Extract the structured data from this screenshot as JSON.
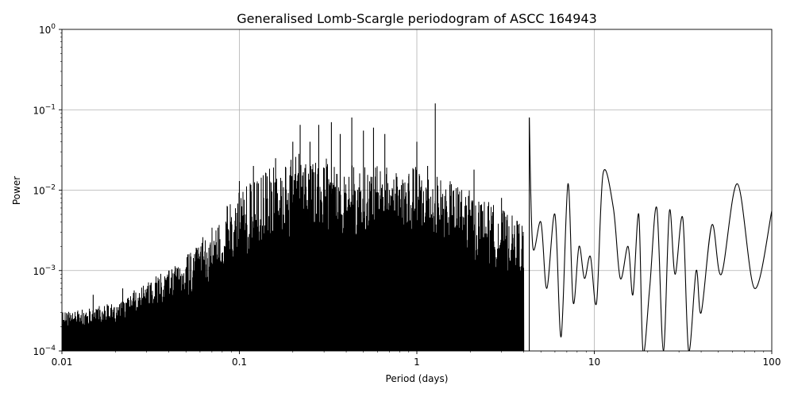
{
  "chart_data": {
    "type": "line",
    "title": "Generalised Lomb-Scargle periodogram of ASCC 164943",
    "xlabel": "Period (days)",
    "ylabel": "Power",
    "xscale": "log",
    "yscale": "log",
    "xlim": [
      0.01,
      100
    ],
    "ylim": [
      0.0001,
      1
    ],
    "grid": true,
    "line_color": "#000000",
    "x_ticks": [
      {
        "value": 0.01,
        "label": "0.01"
      },
      {
        "value": 0.1,
        "label": "0.1"
      },
      {
        "value": 1,
        "label": "1"
      },
      {
        "value": 10,
        "label": "10"
      },
      {
        "value": 100,
        "label": "100"
      }
    ],
    "y_ticks": [
      {
        "value": 0.0001,
        "base": "10",
        "exp": "−4"
      },
      {
        "value": 0.001,
        "base": "10",
        "exp": "−3"
      },
      {
        "value": 0.01,
        "base": "10",
        "exp": "−2"
      },
      {
        "value": 0.1,
        "base": "10",
        "exp": "−1"
      },
      {
        "value": 1,
        "base": "10",
        "exp": "0"
      }
    ],
    "envelope": [
      {
        "period": 0.01,
        "low": 0.0001,
        "high": 0.0003
      },
      {
        "period": 0.02,
        "low": 0.0001,
        "high": 0.0004
      },
      {
        "period": 0.05,
        "low": 0.0001,
        "high": 0.0015
      },
      {
        "period": 0.1,
        "low": 0.0001,
        "high": 0.01
      },
      {
        "period": 0.2,
        "low": 0.0001,
        "high": 0.03
      },
      {
        "period": 0.5,
        "low": 0.0001,
        "high": 0.02
      },
      {
        "period": 1.0,
        "low": 0.0001,
        "high": 0.02
      },
      {
        "period": 2.0,
        "low": 0.0001,
        "high": 0.01
      },
      {
        "period": 4.0,
        "low": 0.0001,
        "high": 0.004
      }
    ],
    "peaks": [
      {
        "period": 0.015,
        "power": 0.0005
      },
      {
        "period": 0.022,
        "power": 0.0006
      },
      {
        "period": 0.04,
        "power": 0.001
      },
      {
        "period": 0.06,
        "power": 0.0015
      },
      {
        "period": 0.1,
        "power": 0.013
      },
      {
        "period": 0.12,
        "power": 0.02
      },
      {
        "period": 0.16,
        "power": 0.025
      },
      {
        "period": 0.2,
        "power": 0.04
      },
      {
        "period": 0.22,
        "power": 0.065
      },
      {
        "period": 0.25,
        "power": 0.04
      },
      {
        "period": 0.28,
        "power": 0.065
      },
      {
        "period": 0.33,
        "power": 0.07
      },
      {
        "period": 0.37,
        "power": 0.05
      },
      {
        "period": 0.43,
        "power": 0.08
      },
      {
        "period": 0.5,
        "power": 0.055
      },
      {
        "period": 0.57,
        "power": 0.06
      },
      {
        "period": 0.66,
        "power": 0.05
      },
      {
        "period": 0.9,
        "power": 0.015
      },
      {
        "period": 1.0,
        "power": 0.04
      },
      {
        "period": 1.15,
        "power": 0.02
      },
      {
        "period": 1.27,
        "power": 0.12
      },
      {
        "period": 2.1,
        "power": 0.018
      },
      {
        "period": 3.0,
        "power": 0.008
      },
      {
        "period": 4.3,
        "power": 0.08
      }
    ],
    "smooth_tail": [
      {
        "period": 4.3,
        "power": 0.08
      },
      {
        "period": 4.5,
        "power": 0.002
      },
      {
        "period": 5.0,
        "power": 0.004
      },
      {
        "period": 5.4,
        "power": 0.0006
      },
      {
        "period": 6.0,
        "power": 0.005
      },
      {
        "period": 6.5,
        "power": 0.00015
      },
      {
        "period": 7.1,
        "power": 0.012
      },
      {
        "period": 7.6,
        "power": 0.0004
      },
      {
        "period": 8.2,
        "power": 0.002
      },
      {
        "period": 8.8,
        "power": 0.0008
      },
      {
        "period": 9.5,
        "power": 0.0015
      },
      {
        "period": 10.3,
        "power": 0.0004
      },
      {
        "period": 11.2,
        "power": 0.016
      },
      {
        "period": 12.8,
        "power": 0.006
      },
      {
        "period": 14.0,
        "power": 0.0008
      },
      {
        "period": 15.5,
        "power": 0.002
      },
      {
        "period": 16.5,
        "power": 0.0005
      },
      {
        "period": 17.8,
        "power": 0.005
      },
      {
        "period": 18.8,
        "power": 0.0001
      },
      {
        "period": 20.5,
        "power": 0.0006
      },
      {
        "period": 22.5,
        "power": 0.006
      },
      {
        "period": 24.5,
        "power": 0.0001
      },
      {
        "period": 26.5,
        "power": 0.0055
      },
      {
        "period": 28.5,
        "power": 0.0009
      },
      {
        "period": 31.5,
        "power": 0.0045
      },
      {
        "period": 34.0,
        "power": 0.0001
      },
      {
        "period": 37.5,
        "power": 0.001
      },
      {
        "period": 40.0,
        "power": 0.0003
      },
      {
        "period": 46.0,
        "power": 0.0037
      },
      {
        "period": 52.0,
        "power": 0.0009
      },
      {
        "period": 64.0,
        "power": 0.012
      },
      {
        "period": 80.0,
        "power": 0.0006
      },
      {
        "period": 100.0,
        "power": 0.0055
      }
    ]
  }
}
